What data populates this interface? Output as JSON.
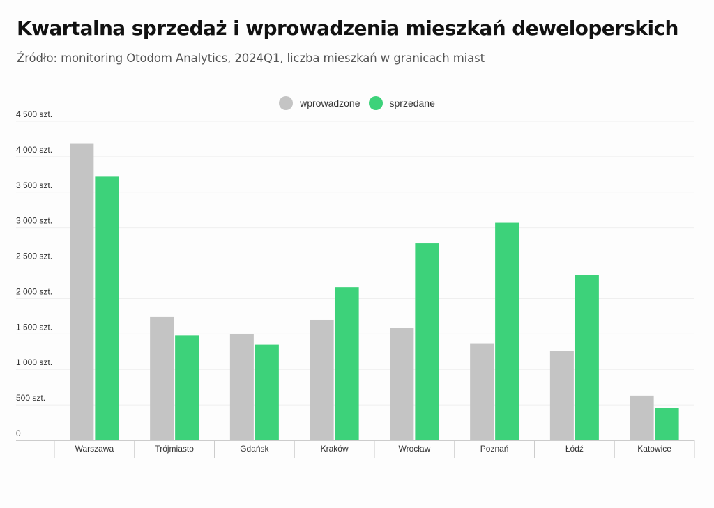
{
  "header": {
    "title": "Kwartalna sprzedaż i wprowadzenia mieszkań deweloperskich",
    "subtitle": "Źródło: monitoring Otodom Analytics, 2024Q1, liczba mieszkań w granicach miast"
  },
  "colors": {
    "wprowadzone": "#c4c4c4",
    "sprzedane": "#3dd27a",
    "grid": "#efefef",
    "axis": "#cccccc"
  },
  "chart_data": {
    "type": "bar",
    "title": "Kwartalna sprzedaż i wprowadzenia mieszkań deweloperskich",
    "subtitle": "Źródło: monitoring Otodom Analytics, 2024Q1, liczba mieszkań w granicach miast",
    "xlabel": "",
    "ylabel": "",
    "ylim": [
      0,
      4500
    ],
    "grid": true,
    "legend_position": "top-center",
    "categories": [
      "Warszawa",
      "Trójmiasto",
      "Gdańsk",
      "Kraków",
      "Wrocław",
      "Poznań",
      "Łódź",
      "Katowice"
    ],
    "series": [
      {
        "name": "wprowadzone",
        "values": [
          4190,
          1740,
          1500,
          1700,
          1590,
          1370,
          1260,
          630
        ]
      },
      {
        "name": "sprzedane",
        "values": [
          3720,
          1480,
          1350,
          2160,
          2780,
          3070,
          2330,
          460
        ]
      }
    ],
    "yticks": [
      0,
      500,
      1000,
      1500,
      2000,
      2500,
      3000,
      3500,
      4000,
      4500
    ],
    "ytick_labels": [
      "0",
      "500 szt.",
      "1 000 szt.",
      "1 500 szt.",
      "2 000 szt.",
      "2 500 szt.",
      "3 000 szt.",
      "3 500 szt.",
      "4 000 szt.",
      "4 500 szt."
    ]
  }
}
